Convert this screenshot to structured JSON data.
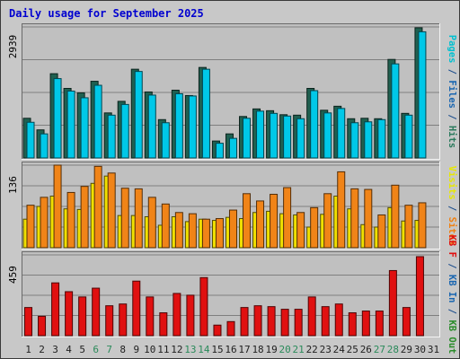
{
  "chart_data": {
    "type": "bar",
    "title": "Daily usage for September 2025",
    "x": {
      "categories": [
        "1",
        "2",
        "3",
        "4",
        "5",
        "6",
        "7",
        "8",
        "9",
        "10",
        "11",
        "12",
        "13",
        "14",
        "15",
        "16",
        "17",
        "18",
        "19",
        "20",
        "21",
        "22",
        "23",
        "24",
        "25",
        "26",
        "27",
        "28",
        "29",
        "30",
        "31"
      ],
      "weekend_days": [
        "6",
        "7",
        "13",
        "14",
        "20",
        "21",
        "27",
        "28"
      ]
    },
    "panels": [
      {
        "id": "top",
        "ymax_label": "2939",
        "ylabel_parts": [
          {
            "text": "Pages",
            "color": "#00c0d0"
          },
          {
            "text": " / ",
            "color": "#1a4c8c"
          },
          {
            "text": "Files",
            "color": "#1a66b0"
          },
          {
            "text": " / ",
            "color": "#1a4c8c"
          },
          {
            "text": "Hits",
            "color": "#2a7a5c"
          }
        ],
        "ylim": [
          0,
          2939
        ],
        "series": [
          {
            "name": "Hits",
            "color": "#206050",
            "values": [
              890,
              630,
              1890,
              1560,
              1460,
              1720,
              1010,
              1270,
              1990,
              1480,
              860,
              1520,
              1400,
              2030,
              380,
              540,
              930,
              1100,
              1060,
              970,
              960,
              1560,
              1070,
              1160,
              880,
              890,
              880,
              2210,
              1000,
              2920,
              null
            ]
          },
          {
            "name": "Files",
            "color": "#00c8e8",
            "values": [
              800,
              540,
              1780,
              1500,
              1350,
              1630,
              960,
              1200,
              1940,
              1410,
              790,
              1440,
              1390,
              1990,
              330,
              440,
              890,
              1050,
              1000,
              940,
              880,
              1510,
              1010,
              1110,
              790,
              810,
              860,
              2110,
              960,
              2830,
              null
            ]
          }
        ]
      },
      {
        "id": "middle",
        "ymax_label": "136",
        "ylabel_parts": [
          {
            "text": "Visits",
            "color": "#e8e800"
          },
          {
            "text": " / ",
            "color": "#1a4c8c"
          },
          {
            "text": "Sites",
            "color": "#f08010"
          }
        ],
        "ylim": [
          0,
          136
        ],
        "series": [
          {
            "name": "Visits",
            "color": "#f0e000",
            "values": [
              47,
              68,
              85,
              64,
              63,
              106,
              118,
              53,
              53,
              51,
              37,
              51,
              43,
              47,
              45,
              50,
              48,
              58,
              60,
              56,
              54,
              34,
              55,
              85,
              64,
              38,
              34,
              66,
              44,
              45,
              null
            ]
          },
          {
            "name": "Sites",
            "color": "#f08418",
            "values": [
              70,
              83,
              136,
              91,
              101,
              134,
              123,
              98,
              97,
              83,
              72,
              58,
              56,
              47,
              48,
              62,
              89,
              77,
              88,
              99,
              58,
              66,
              89,
              125,
              97,
              96,
              54,
              103,
              70,
              74,
              null
            ]
          }
        ]
      },
      {
        "id": "bottom",
        "ymax_label": "459",
        "ylabel_parts": [
          {
            "text": "KB F",
            "color": "#e01010"
          },
          {
            "text": " / ",
            "color": "#1a4c8c"
          },
          {
            "text": "KB In",
            "color": "#1a66b0"
          },
          {
            "text": " / ",
            "color": "#1a4c8c"
          },
          {
            "text": "KB Out",
            "color": "#2a8c2a"
          }
        ],
        "ylim": [
          0,
          459
        ],
        "series": [
          {
            "name": "KB F",
            "color": "#e01010",
            "values": [
              160,
              110,
              300,
              250,
              220,
              270,
              170,
              180,
              310,
              220,
              130,
              240,
              230,
              330,
              60,
              80,
              160,
              170,
              165,
              150,
              150,
              220,
              165,
              180,
              130,
              140,
              140,
              370,
              160,
              449,
              null
            ]
          }
        ]
      }
    ],
    "colors": {
      "frame": "#3c3c3c",
      "panel_bg": "#c0c0c0",
      "gridline": "#7f7f7f",
      "title": "#0000d0",
      "weekday_text": "#202020",
      "weekend_text": "#2a8a5a"
    }
  }
}
